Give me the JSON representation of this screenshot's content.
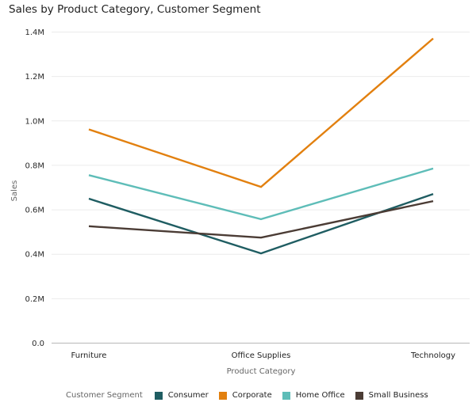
{
  "chart_data": {
    "type": "line",
    "title": "Sales by Product Category, Customer Segment",
    "xlabel": "Product Category",
    "ylabel": "Sales",
    "categories": [
      "Furniture",
      "Office Supplies",
      "Technology"
    ],
    "ylim": [
      0,
      1400000
    ],
    "yticks": [
      0,
      200000,
      400000,
      600000,
      800000,
      1000000,
      1200000,
      1400000
    ],
    "ytick_labels": [
      "0.0",
      "0.2M",
      "0.4M",
      "0.6M",
      "0.8M",
      "1.0M",
      "1.2M",
      "1.4M"
    ],
    "grid": true,
    "legend_title": "Customer Segment",
    "legend_position": "bottom",
    "series": [
      {
        "name": "Consumer",
        "color": "#1F5D62",
        "values": [
          650000,
          404000,
          671000
        ]
      },
      {
        "name": "Corporate",
        "color": "#E2800F",
        "values": [
          962000,
          703000,
          1371000
        ]
      },
      {
        "name": "Home Office",
        "color": "#5EBDB8",
        "values": [
          756000,
          558000,
          786000
        ]
      },
      {
        "name": "Small Business",
        "color": "#4B3C35",
        "values": [
          526000,
          475000,
          639000
        ]
      }
    ]
  }
}
